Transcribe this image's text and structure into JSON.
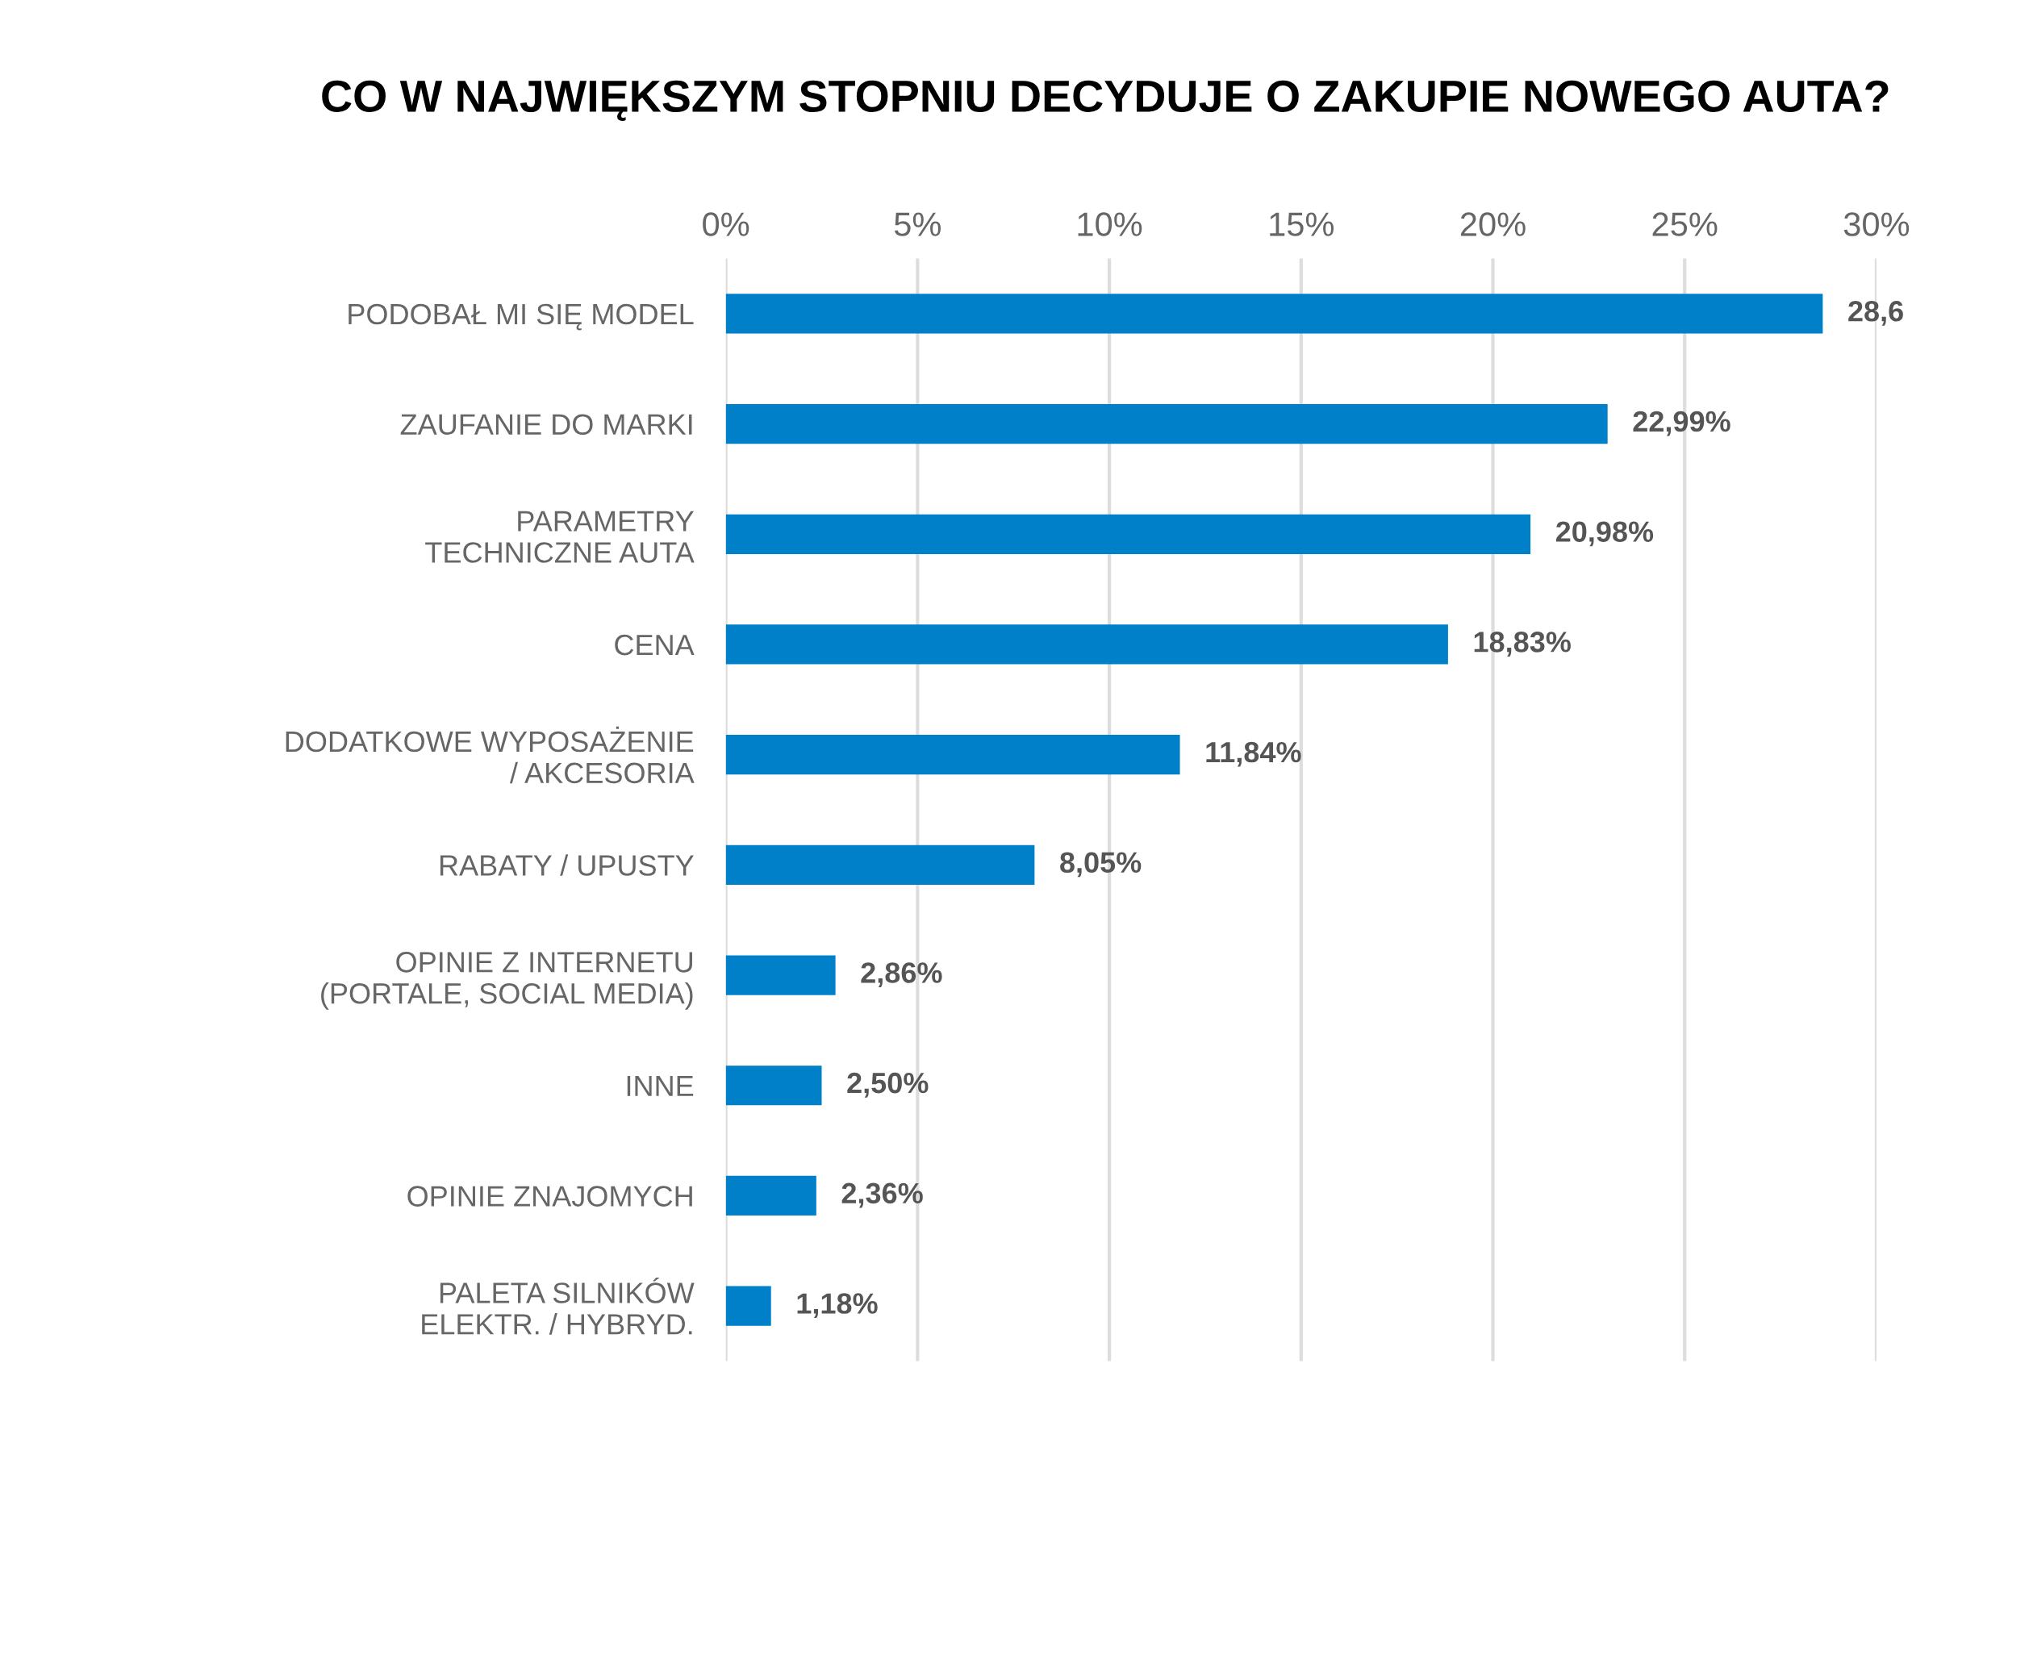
{
  "chart_data": {
    "type": "bar",
    "orientation": "horizontal",
    "title": "CO W NAJWIĘKSZYM STOPNIU DECYDUJE O ZAKUPIE NOWEGO AUTA?",
    "categories": [
      "PODOBAŁ MI SIĘ MODEL",
      "ZAUFANIE DO MARKI",
      "PARAMETRY\nTECHNICZNE AUTA",
      "CENA",
      "DODATKOWE WYPOSAŻENIE\n/ AKCESORIA",
      "RABATY / UPUSTY",
      "OPINIE Z INTERNETU\n(PORTALE, SOCIAL MEDIA)",
      "INNE",
      "OPINIE ZNAJOMYCH",
      "PALETA SILNIKÓW\nELEKTR. / HYBRYD."
    ],
    "values": [
      28.6,
      22.99,
      20.98,
      18.83,
      11.84,
      8.05,
      2.86,
      2.5,
      2.36,
      1.18
    ],
    "value_labels": [
      "28,6",
      "22,99%",
      "20,98%",
      "18,83%",
      "11,84%",
      "8,05%",
      "2,86%",
      "2,50%",
      "2,36%",
      "1,18%"
    ],
    "color": "#0080c9",
    "xlim": [
      0,
      30
    ],
    "xticks": [
      {
        "value": 0,
        "label": "0%"
      },
      {
        "value": 5,
        "label": "5%"
      },
      {
        "value": 10,
        "label": "10%"
      },
      {
        "value": 15,
        "label": "15%"
      },
      {
        "value": 20,
        "label": "20%"
      },
      {
        "value": 25,
        "label": "25%"
      },
      {
        "value": 30,
        "label": "30%"
      }
    ],
    "grid": "x",
    "legend": false
  }
}
